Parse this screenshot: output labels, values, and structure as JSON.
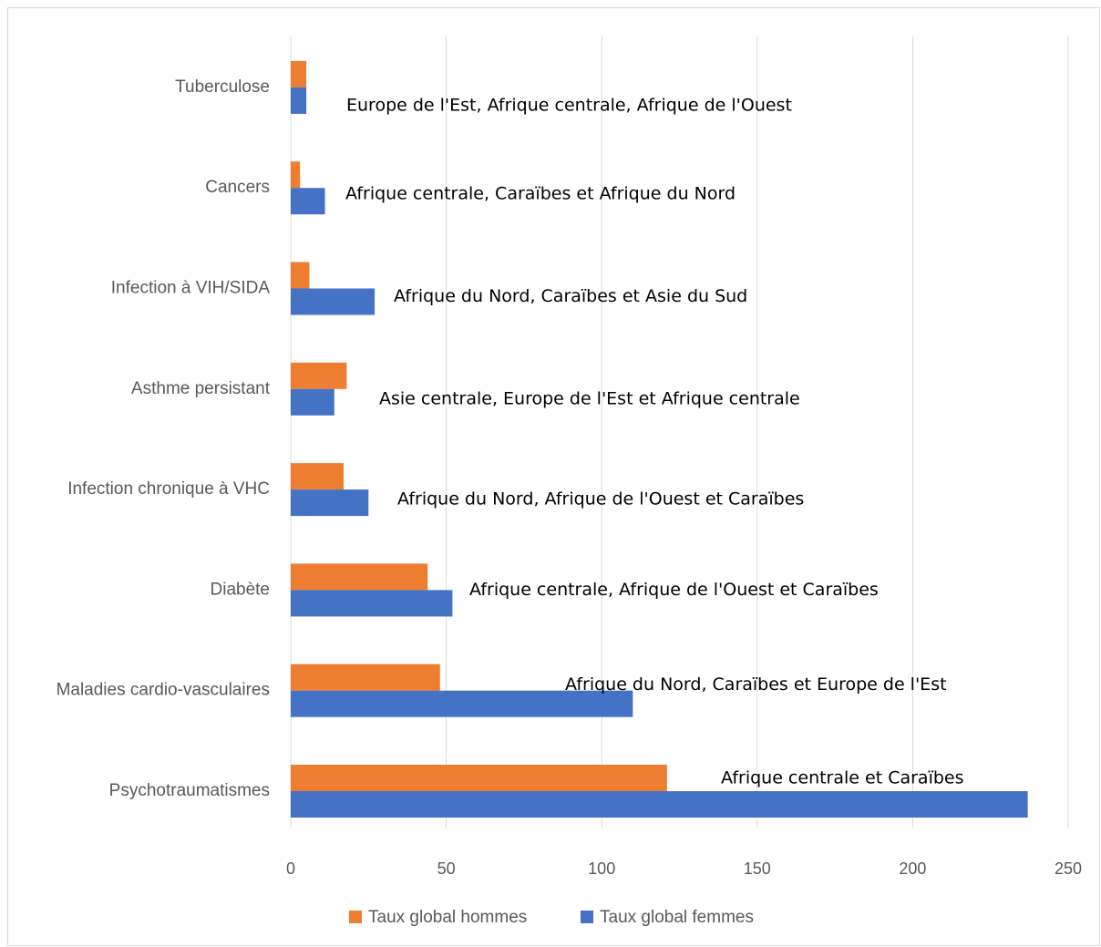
{
  "chart_data": {
    "type": "bar",
    "orientation": "horizontal",
    "title": "",
    "xlabel": "",
    "ylabel": "",
    "categories": [
      "Psychotraumatismes",
      "Maladies cardio-vasculaires",
      "Diabète",
      "Infection chronique à VHC",
      "Asthme persistant",
      "Infection à VIH/SIDA",
      "Cancers",
      "Tuberculose"
    ],
    "series": [
      {
        "name": "Taux global hommes",
        "color": "#ed7d31",
        "values": [
          121,
          48,
          44,
          17,
          18,
          6,
          3,
          5
        ]
      },
      {
        "name": "Taux global femmes",
        "color": "#4472c4",
        "values": [
          237,
          110,
          52,
          25,
          14,
          27,
          11,
          5
        ]
      }
    ],
    "annotations": [
      "Afrique centrale et Caraïbes",
      "Afrique du Nord, Caraïbes et Europe de l'Est",
      "Afrique centrale, Afrique de l'Ouest et Caraïbes",
      "Afrique du Nord, Afrique de l'Ouest et Caraïbes",
      "Asie centrale, Europe de l'Est et Afrique centrale",
      "Afrique du Nord, Caraïbes et Asie du Sud",
      "Afrique centrale, Caraïbes et Afrique du Nord",
      "Europe de l'Est, Afrique centrale, Afrique de l'Ouest"
    ],
    "xlim": [
      0,
      250
    ],
    "xticks": [
      0,
      50,
      100,
      150,
      200,
      250
    ],
    "grid": true,
    "legend_position": "bottom"
  }
}
